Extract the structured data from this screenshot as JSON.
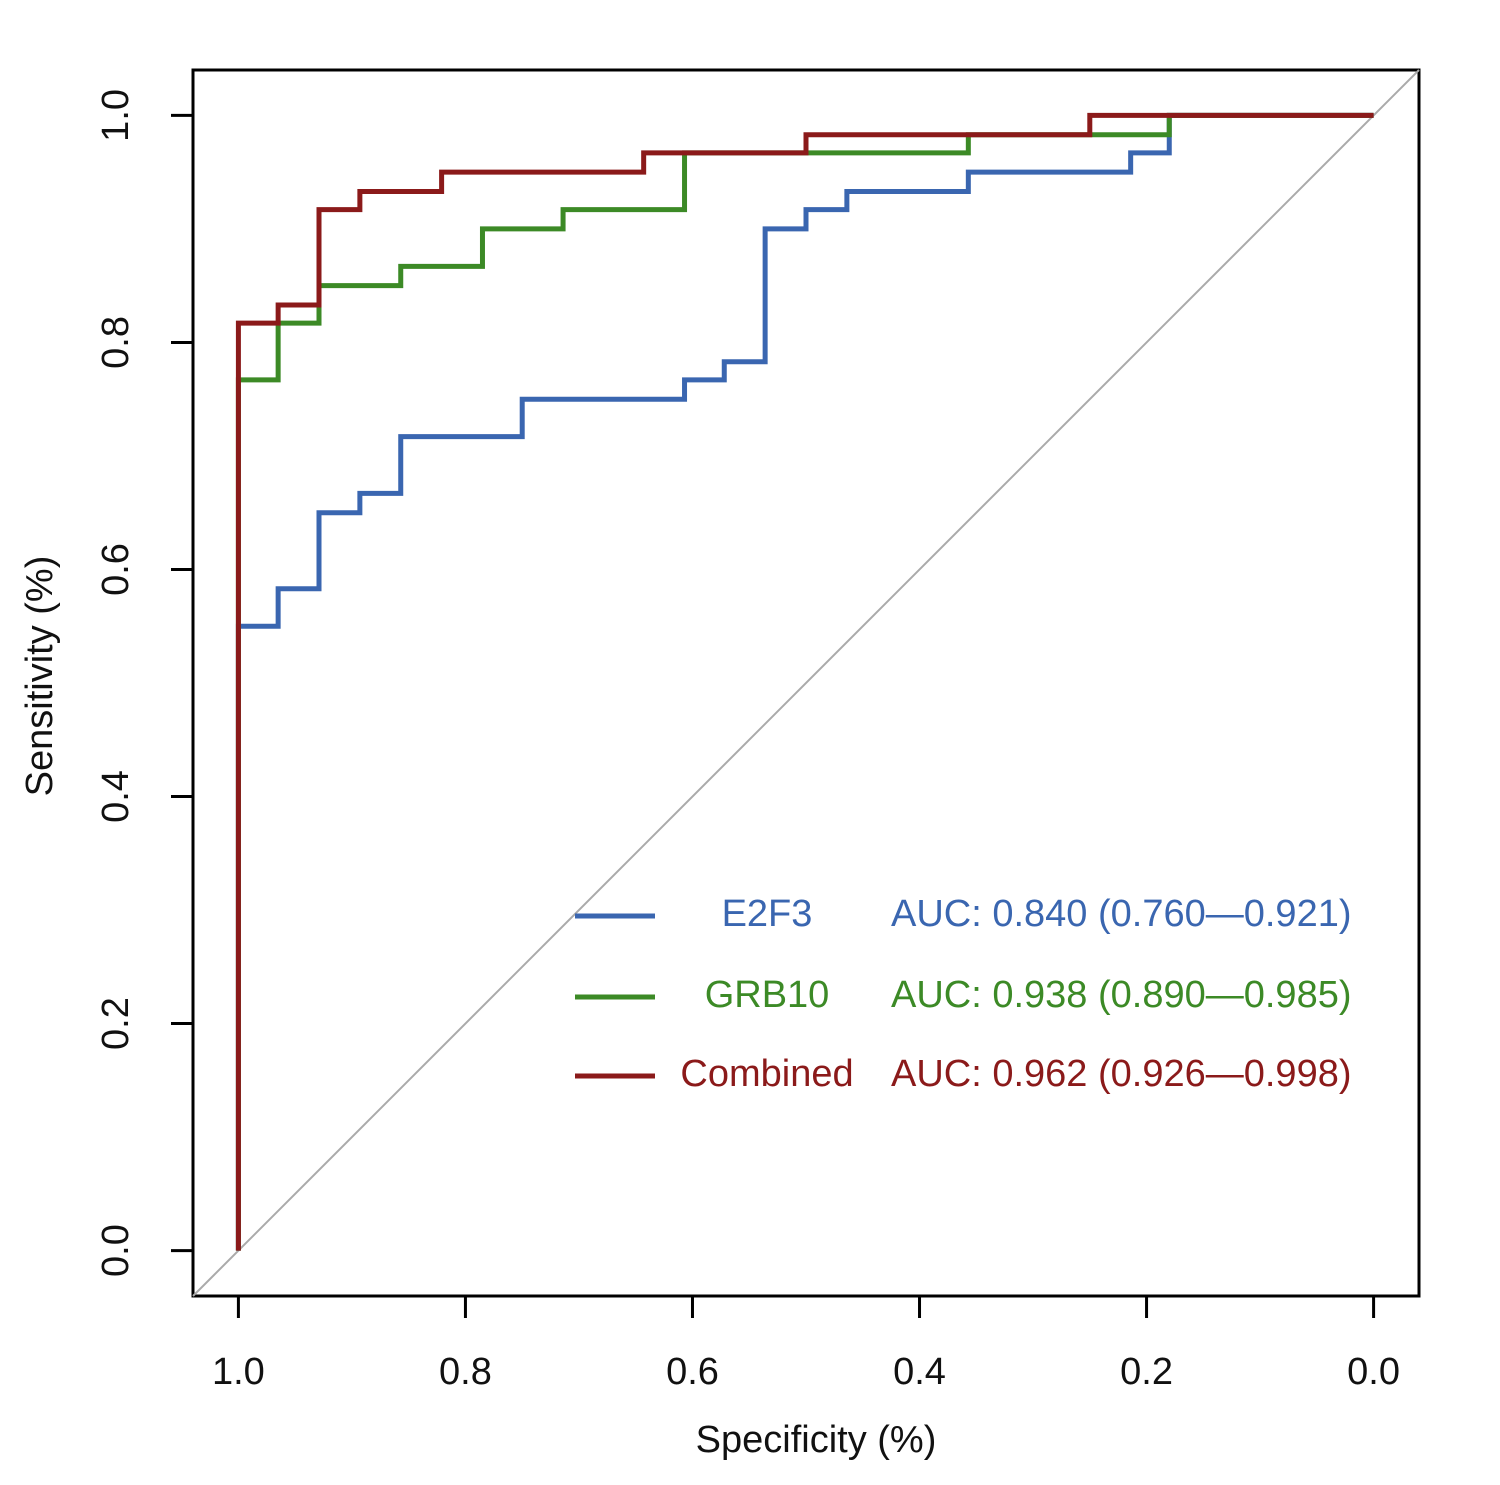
{
  "chart_data": {
    "type": "line",
    "x_label": "Specificity (%)",
    "y_label": "Sensitivity (%)",
    "xlim": [
      1.04,
      -0.04
    ],
    "ylim": [
      -0.04,
      1.04
    ],
    "xticks": [
      {
        "value": 1.0,
        "label": "1.0"
      },
      {
        "value": 0.8,
        "label": "0.8"
      },
      {
        "value": 0.6,
        "label": "0.6"
      },
      {
        "value": 0.4,
        "label": "0.4"
      },
      {
        "value": 0.2,
        "label": "0.2"
      },
      {
        "value": 0,
        "label": "0.0"
      }
    ],
    "yticks": [
      {
        "value": 0,
        "label": "0.0"
      },
      {
        "value": 0.2,
        "label": "0.2"
      },
      {
        "value": 0.4,
        "label": "0.4"
      },
      {
        "value": 0.6,
        "label": "0.6"
      },
      {
        "value": 0.8,
        "label": "0.8"
      },
      {
        "value": 1.0,
        "label": "1.0"
      }
    ],
    "diagonal": true,
    "grid": false,
    "legend": "bottom-right",
    "series": [
      {
        "name": "E2F3",
        "color": "#3a66b0",
        "auc_label": "AUC: 0.840 (0.760—0.921)",
        "x": [
          1.0,
          1.0,
          0.965,
          0.965,
          0.929,
          0.929,
          0.893,
          0.893,
          0.857,
          0.857,
          0.75,
          0.75,
          0.607,
          0.607,
          0.572,
          0.572,
          0.536,
          0.536,
          0.5,
          0.5,
          0.464,
          0.464,
          0.357,
          0.357,
          0.214,
          0.214,
          0.18,
          0.18,
          0
        ],
        "values": [
          0,
          0.55,
          0.55,
          0.583,
          0.583,
          0.65,
          0.65,
          0.667,
          0.667,
          0.717,
          0.717,
          0.75,
          0.75,
          0.767,
          0.767,
          0.783,
          0.783,
          0.9,
          0.9,
          0.917,
          0.917,
          0.933,
          0.933,
          0.95,
          0.95,
          0.967,
          0.967,
          1.0,
          1.0
        ]
      },
      {
        "name": "GRB10",
        "color": "#3c8a26",
        "auc_label": "AUC: 0.938 (0.890—0.985)",
        "x": [
          1.0,
          1.0,
          0.965,
          0.965,
          0.929,
          0.929,
          0.857,
          0.857,
          0.785,
          0.785,
          0.714,
          0.714,
          0.607,
          0.607,
          0.357,
          0.357,
          0.18,
          0.18,
          0
        ],
        "values": [
          0,
          0.767,
          0.767,
          0.817,
          0.817,
          0.85,
          0.85,
          0.867,
          0.867,
          0.9,
          0.9,
          0.917,
          0.917,
          0.967,
          0.967,
          0.983,
          0.983,
          1.0,
          1.0
        ]
      },
      {
        "name": "Combined",
        "color": "#8b1a1a",
        "auc_label": "AUC: 0.962 (0.926—0.998)",
        "x": [
          1.0,
          1.0,
          0.965,
          0.965,
          0.929,
          0.929,
          0.893,
          0.893,
          0.821,
          0.821,
          0.643,
          0.643,
          0.5,
          0.5,
          0.25,
          0.25,
          0
        ],
        "values": [
          0,
          0.817,
          0.817,
          0.833,
          0.833,
          0.917,
          0.917,
          0.933,
          0.933,
          0.95,
          0.95,
          0.967,
          0.967,
          0.983,
          0.983,
          1.0,
          1.0
        ]
      }
    ]
  }
}
